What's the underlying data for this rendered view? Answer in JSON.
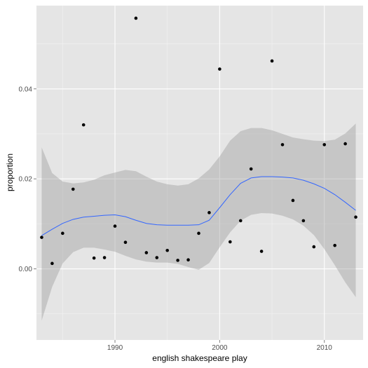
{
  "chart_data": {
    "type": "scatter",
    "title": "",
    "xlabel": "english shakespeare play",
    "ylabel": "proportion",
    "xlim": [
      1982.5,
      2013.7
    ],
    "ylim": [
      -0.0158,
      0.0585
    ],
    "x_ticks": [
      1990,
      2000,
      2010
    ],
    "y_ticks": [
      0.0,
      0.02,
      0.04
    ],
    "x_tick_labels": [
      "1990",
      "2000",
      "2010"
    ],
    "y_tick_labels": [
      "0.00",
      "0.02",
      "0.04"
    ],
    "grid": true,
    "legend": "none",
    "colors": {
      "panel_background": "#e5e5e5",
      "grid_major": "#ffffff",
      "grid_minor": "#f2f2f2",
      "points": "#000000",
      "smooth_line": "#3366ff",
      "confidence_band": "#999999"
    },
    "points": {
      "x": [
        1983,
        1984,
        1985,
        1986,
        1987,
        1988,
        1989,
        1990,
        1991,
        1992,
        1993,
        1994,
        1995,
        1996,
        1997,
        1998,
        1999,
        2000,
        2001,
        2002,
        2003,
        2004,
        2005,
        2006,
        2007,
        2008,
        2009,
        2010,
        2011,
        2012,
        2013
      ],
      "y": [
        0.007,
        0.0012,
        0.0079,
        0.0177,
        0.032,
        0.0024,
        0.0025,
        0.0095,
        0.0059,
        0.0557,
        0.0036,
        0.0025,
        0.0041,
        0.0019,
        0.002,
        0.0079,
        0.0125,
        0.0444,
        0.006,
        0.0107,
        0.0222,
        0.0039,
        0.0462,
        0.0276,
        0.0152,
        0.0107,
        0.0049,
        0.0276,
        0.0052,
        0.0278,
        0.0115
      ]
    },
    "smooth": {
      "x": [
        1983,
        1984,
        1985,
        1986,
        1987,
        1988,
        1989,
        1990,
        1991,
        1992,
        1993,
        1994,
        1995,
        1996,
        1997,
        1998,
        1999,
        2000,
        2001,
        2002,
        2003,
        2004,
        2005,
        2006,
        2007,
        2008,
        2009,
        2010,
        2011,
        2012,
        2013
      ],
      "y": [
        0.0074,
        0.0088,
        0.0101,
        0.011,
        0.0115,
        0.0117,
        0.0119,
        0.012,
        0.0116,
        0.0108,
        0.0101,
        0.0098,
        0.0097,
        0.0097,
        0.0097,
        0.0098,
        0.0108,
        0.0136,
        0.0165,
        0.019,
        0.0202,
        0.0205,
        0.0205,
        0.0204,
        0.0202,
        0.0197,
        0.0189,
        0.0179,
        0.0165,
        0.0148,
        0.013
      ],
      "lower": [
        -0.0115,
        -0.004,
        0.0012,
        0.0037,
        0.0047,
        0.0047,
        0.0043,
        0.0038,
        0.0029,
        0.0021,
        0.0016,
        0.0014,
        0.0014,
        0.0011,
        0.0004,
        -0.0002,
        0.0013,
        0.0048,
        0.0081,
        0.0107,
        0.012,
        0.0124,
        0.0123,
        0.0118,
        0.011,
        0.0096,
        0.0075,
        0.0044,
        0.0008,
        -0.003,
        -0.0063
      ],
      "upper": [
        0.027,
        0.0213,
        0.0194,
        0.019,
        0.0192,
        0.0198,
        0.0208,
        0.0214,
        0.022,
        0.0217,
        0.0205,
        0.0194,
        0.0188,
        0.0185,
        0.0188,
        0.0201,
        0.0221,
        0.025,
        0.0285,
        0.0306,
        0.0313,
        0.0313,
        0.0308,
        0.03,
        0.0292,
        0.0288,
        0.0285,
        0.0284,
        0.0287,
        0.0301,
        0.0323
      ]
    }
  }
}
